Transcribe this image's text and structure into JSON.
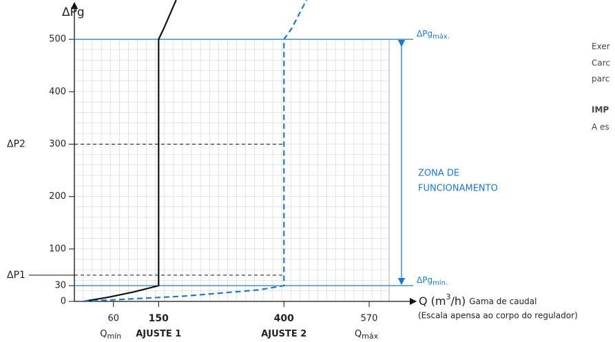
{
  "chart_data": {
    "type": "line",
    "y_label": "ΔPg",
    "x_label": {
      "main": "Q (m",
      "sup": "3",
      "unit": "/h)",
      "note": "Gama de caudal",
      "note2": "(Escala apensa ao corpo do regulador)"
    },
    "xlim": [
      -18,
      640
    ],
    "ylim": [
      0,
      575
    ],
    "yticks": [
      0,
      30,
      100,
      200,
      300,
      400,
      500
    ],
    "xticks": [
      60,
      150,
      400,
      570
    ],
    "xtick_sublabels": [
      {
        "text": "Q",
        "sub": "mín"
      },
      {
        "text": "AJUSTE 1"
      },
      {
        "text": "AJUSTE 2"
      },
      {
        "text": "Q",
        "sub": "máx"
      }
    ],
    "grid": true,
    "series": [
      {
        "color": "#111111",
        "dash": false,
        "x": [
          0,
          50,
          100,
          150,
          150,
          160,
          185
        ],
        "values": [
          0,
          8,
          18,
          30,
          500,
          520,
          575
        ]
      },
      {
        "color": "#1f78c8",
        "dash": true,
        "x": [
          0,
          200,
          350,
          400,
          400,
          415,
          445
        ],
        "values": [
          0,
          10,
          22,
          30,
          500,
          520,
          575
        ]
      }
    ],
    "levels": [
      {
        "label": "ΔP1",
        "value": 50
      },
      {
        "label": "ΔP2",
        "value": 300
      }
    ],
    "limits": [
      {
        "text": "ΔPg",
        "sub": "máx.",
        "value": 500
      },
      {
        "text": "ΔPg",
        "sub": "mín.",
        "value": 30
      }
    ],
    "zone": [
      "ZONA DE",
      "FUNCIONAMENTO"
    ],
    "side_text": [
      "Exer",
      "Carc",
      "parc",
      "IMP",
      "A es"
    ]
  }
}
